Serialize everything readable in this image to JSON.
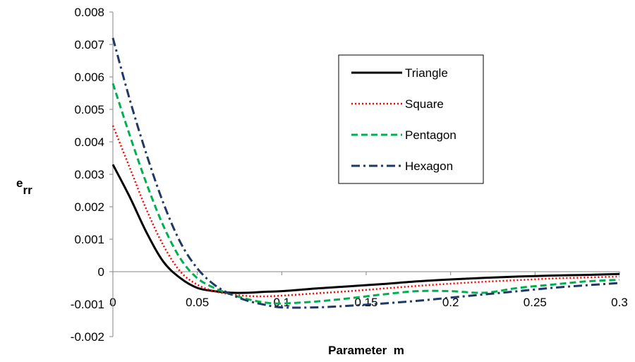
{
  "chart_data": {
    "type": "line",
    "title": "",
    "xlabel": "Parameter  m",
    "ylabel": "e",
    "ylabel_sub": "rr",
    "xlim": [
      0,
      0.3
    ],
    "ylim": [
      -0.002,
      0.008
    ],
    "x_ticks": [
      "0",
      "0.05",
      "0.1",
      "0.15",
      "0.2",
      "0.25",
      "0.3"
    ],
    "y_ticks": [
      "-0.002",
      "-0.001",
      "0",
      "0.001",
      "0.002",
      "0.003",
      "0.004",
      "0.005",
      "0.006",
      "0.007",
      "0.008"
    ],
    "grid": false,
    "legend_position": "top-right",
    "x": [
      0,
      0.01,
      0.02,
      0.03,
      0.04,
      0.05,
      0.06,
      0.07,
      0.08,
      0.09,
      0.1,
      0.12,
      0.14,
      0.16,
      0.18,
      0.2,
      0.22,
      0.24,
      0.26,
      0.28,
      0.3
    ],
    "series": [
      {
        "name": "Triangle",
        "color": "#000000",
        "dash": "solid",
        "values": [
          0.0033,
          0.0023,
          0.0012,
          0.0003,
          -0.0002,
          -0.0005,
          -0.0006,
          -0.00065,
          -0.00065,
          -0.00062,
          -0.0006,
          -0.00052,
          -0.00045,
          -0.00038,
          -0.0003,
          -0.00024,
          -0.00019,
          -0.00015,
          -0.00012,
          -0.0001,
          -7e-05
        ]
      },
      {
        "name": "Square",
        "color": "#ff0000",
        "dash": "dotted",
        "values": [
          0.0045,
          0.0032,
          0.0019,
          0.0008,
          0.0,
          -0.0004,
          -0.0006,
          -0.0007,
          -0.00075,
          -0.00076,
          -0.00074,
          -0.00067,
          -0.0006,
          -0.00052,
          -0.00044,
          -0.00037,
          -0.00031,
          -0.00026,
          -0.00021,
          -0.00018,
          -0.00015
        ]
      },
      {
        "name": "Pentagon",
        "color": "#00b050",
        "dash": "dashed",
        "values": [
          0.0058,
          0.0042,
          0.0027,
          0.0014,
          0.0004,
          -0.0002,
          -0.0005,
          -0.0007,
          -0.00085,
          -0.00095,
          -0.00098,
          -0.00092,
          -0.00082,
          -0.0007,
          -0.0006,
          -0.0006,
          -0.00065,
          -0.0005,
          -0.0004,
          -0.0003,
          -0.00025
        ]
      },
      {
        "name": "Hexagon",
        "color": "#1f3864",
        "dash": "dashdot",
        "values": [
          0.0072,
          0.0053,
          0.0036,
          0.0021,
          0.0009,
          0.0001,
          -0.0004,
          -0.0007,
          -0.0009,
          -0.00102,
          -0.0011,
          -0.0011,
          -0.00105,
          -0.00098,
          -0.0009,
          -0.0008,
          -0.0007,
          -0.0006,
          -0.0005,
          -0.00042,
          -0.00035
        ]
      }
    ]
  }
}
